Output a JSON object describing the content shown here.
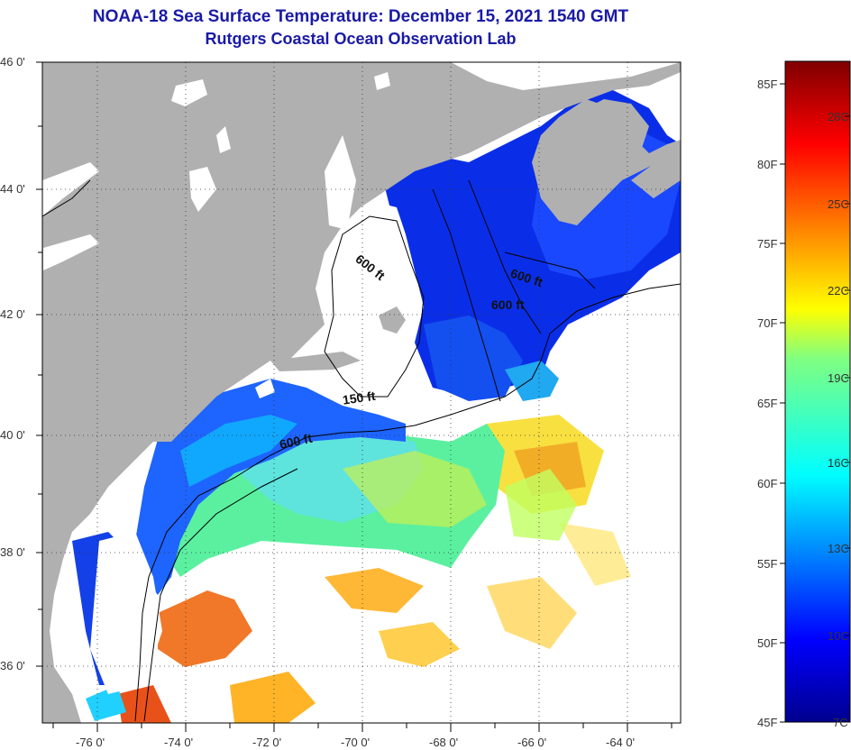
{
  "title": {
    "line1": "NOAA-18 Sea Surface Temperature:  December 15, 2021 1540 GMT",
    "line2": "Rutgers Coastal Ocean Observation Lab"
  },
  "map": {
    "lat_labels": [
      "46 0'",
      "44 0'",
      "42 0'",
      "40 0'",
      "38 0'",
      "36 0'"
    ],
    "lon_labels": [
      "-76 0'",
      "-74 0'",
      "-72 0'",
      "-70 0'",
      "-68 0'",
      "-66 0'",
      "-64 0'"
    ],
    "contour_labels": [
      "600 ft",
      "600 ft",
      "600 ft",
      "150 ft",
      "600 ft"
    ]
  },
  "colorbar": {
    "fahrenheit": [
      "85F",
      "80F",
      "75F",
      "70F",
      "65F",
      "60F",
      "55F",
      "50F",
      "45F"
    ],
    "celsius": [
      "28C",
      "25C",
      "22C",
      "19C",
      "16C",
      "13C",
      "10C",
      "7C"
    ]
  },
  "colors": {
    "land": "#b0b0b0",
    "cloud": "#ffffff",
    "title": "#1a1aa6"
  }
}
